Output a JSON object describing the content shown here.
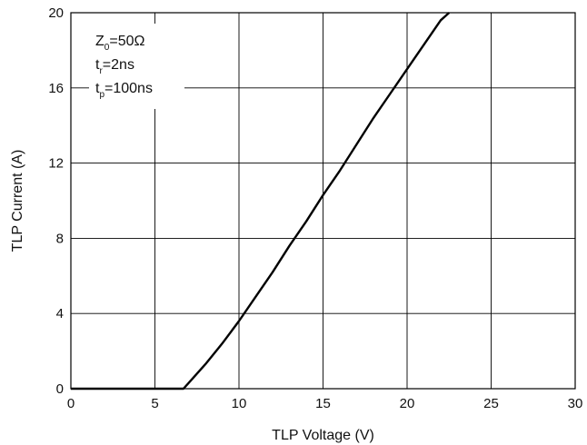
{
  "chart_data": {
    "type": "line",
    "xlabel": "TLP Voltage (V)",
    "ylabel": "TLP Current (A)",
    "xlim": [
      0,
      30
    ],
    "ylim": [
      0,
      20
    ],
    "x_ticks": [
      0,
      5,
      10,
      15,
      20,
      25,
      30
    ],
    "y_ticks": [
      0,
      4,
      8,
      12,
      16,
      20
    ],
    "grid": true,
    "legend_placement": "top-left",
    "annotations": [
      {
        "main": "Z",
        "sub": "0",
        "rest": "=50Ω"
      },
      {
        "main": "t",
        "sub": "r",
        "rest": "=2ns"
      },
      {
        "main": "t",
        "sub": "p",
        "rest": "=100ns"
      }
    ],
    "series": [
      {
        "color": "#000000",
        "points": [
          [
            0,
            0
          ],
          [
            6.7,
            0
          ],
          [
            7.0,
            0.3
          ],
          [
            8.0,
            1.3
          ],
          [
            9.0,
            2.4
          ],
          [
            10.0,
            3.6
          ],
          [
            11.0,
            4.9
          ],
          [
            12.0,
            6.2
          ],
          [
            13.0,
            7.6
          ],
          [
            14.0,
            8.9
          ],
          [
            15.0,
            10.3
          ],
          [
            16.0,
            11.6
          ],
          [
            17.0,
            13.0
          ],
          [
            18.0,
            14.4
          ],
          [
            19.0,
            15.7
          ],
          [
            20.0,
            17.0
          ],
          [
            21.0,
            18.3
          ],
          [
            22.0,
            19.6
          ],
          [
            22.5,
            20.0
          ]
        ]
      }
    ]
  }
}
